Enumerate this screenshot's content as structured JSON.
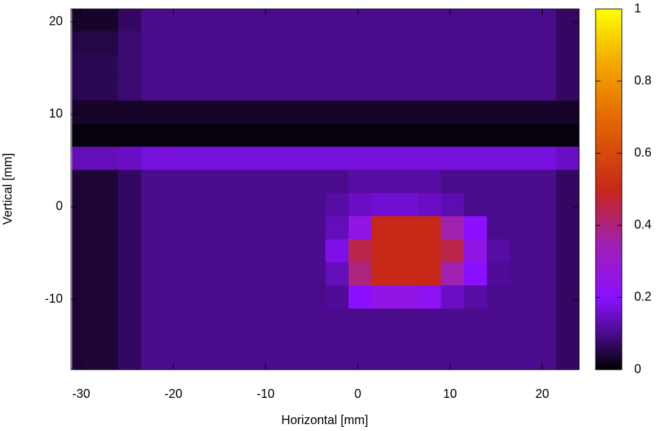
{
  "chart_data": {
    "type": "heatmap",
    "xlabel": "Horizontal [mm]",
    "ylabel": "Vertical [mm]",
    "xlim": [
      -31.1,
      24
    ],
    "ylim": [
      -17.6,
      21.4
    ],
    "xticks": [
      -30,
      -20,
      -10,
      0,
      10,
      20
    ],
    "yticks": [
      -10,
      0,
      10,
      20
    ],
    "clim": [
      0,
      1
    ],
    "cticks": [
      0,
      0.2,
      0.4,
      0.6,
      0.8,
      1
    ],
    "colormap": [
      {
        "value": 0,
        "color": "#000000"
      },
      {
        "value": 0.1,
        "color": "#4a0c8c"
      },
      {
        "value": 0.2,
        "color": "#8a10ff"
      },
      {
        "value": 0.35,
        "color": "#a020b0"
      },
      {
        "value": 0.5,
        "color": "#c82818"
      },
      {
        "value": 0.7,
        "color": "#e46a00"
      },
      {
        "value": 0.85,
        "color": "#f4a800"
      },
      {
        "value": 1,
        "color": "#ffff00"
      }
    ],
    "x": [
      -29.75,
      -27.25,
      -24.75,
      -22.25,
      -19.75,
      -17.25,
      -14.75,
      -12.25,
      -9.75,
      -7.25,
      -4.75,
      -2.25,
      0.25,
      2.75,
      5.25,
      7.75,
      10.25,
      12.75,
      15.25,
      17.75,
      20.25,
      22.75
    ],
    "y": [
      20.25,
      17.75,
      15.25,
      12.75,
      10.25,
      7.75,
      5.25,
      2.75,
      0.25,
      -2.25,
      -4.75,
      -7.25,
      -9.75,
      -12.25,
      -14.75,
      -17.25
    ],
    "z": [
      [
        0.03,
        0.03,
        0.07,
        0.1,
        0.1,
        0.1,
        0.1,
        0.1,
        0.1,
        0.1,
        0.1,
        0.1,
        0.1,
        0.1,
        0.1,
        0.1,
        0.1,
        0.1,
        0.1,
        0.1,
        0.1,
        0.07
      ],
      [
        0.05,
        0.05,
        0.08,
        0.1,
        0.1,
        0.1,
        0.1,
        0.1,
        0.1,
        0.1,
        0.1,
        0.1,
        0.1,
        0.1,
        0.1,
        0.1,
        0.1,
        0.1,
        0.1,
        0.1,
        0.1,
        0.07
      ],
      [
        0.06,
        0.06,
        0.08,
        0.1,
        0.1,
        0.1,
        0.1,
        0.1,
        0.1,
        0.1,
        0.1,
        0.1,
        0.1,
        0.1,
        0.1,
        0.1,
        0.1,
        0.1,
        0.1,
        0.1,
        0.1,
        0.07
      ],
      [
        0.06,
        0.06,
        0.08,
        0.1,
        0.1,
        0.1,
        0.1,
        0.1,
        0.1,
        0.1,
        0.1,
        0.1,
        0.1,
        0.1,
        0.1,
        0.1,
        0.1,
        0.1,
        0.1,
        0.1,
        0.1,
        0.07
      ],
      [
        0.03,
        0.03,
        0.03,
        0.03,
        0.03,
        0.03,
        0.03,
        0.03,
        0.03,
        0.03,
        0.03,
        0.03,
        0.03,
        0.03,
        0.03,
        0.03,
        0.03,
        0.03,
        0.03,
        0.03,
        0.03,
        0.03
      ],
      [
        0.01,
        0.01,
        0.01,
        0.01,
        0.01,
        0.01,
        0.01,
        0.01,
        0.01,
        0.01,
        0.01,
        0.01,
        0.01,
        0.01,
        0.01,
        0.01,
        0.01,
        0.01,
        0.01,
        0.01,
        0.01,
        0.01
      ],
      [
        0.14,
        0.14,
        0.15,
        0.17,
        0.17,
        0.17,
        0.17,
        0.17,
        0.17,
        0.17,
        0.17,
        0.17,
        0.17,
        0.17,
        0.17,
        0.17,
        0.17,
        0.17,
        0.17,
        0.17,
        0.17,
        0.15
      ],
      [
        0.04,
        0.04,
        0.07,
        0.1,
        0.1,
        0.1,
        0.1,
        0.1,
        0.1,
        0.1,
        0.1,
        0.1,
        0.12,
        0.12,
        0.12,
        0.12,
        0.1,
        0.1,
        0.1,
        0.1,
        0.1,
        0.07
      ],
      [
        0.04,
        0.04,
        0.07,
        0.1,
        0.1,
        0.1,
        0.1,
        0.1,
        0.1,
        0.1,
        0.1,
        0.12,
        0.15,
        0.16,
        0.16,
        0.15,
        0.13,
        0.1,
        0.1,
        0.1,
        0.1,
        0.07
      ],
      [
        0.04,
        0.04,
        0.07,
        0.1,
        0.1,
        0.1,
        0.1,
        0.1,
        0.1,
        0.1,
        0.1,
        0.14,
        0.25,
        0.5,
        0.5,
        0.5,
        0.35,
        0.2,
        0.1,
        0.1,
        0.1,
        0.07
      ],
      [
        0.04,
        0.04,
        0.07,
        0.1,
        0.1,
        0.1,
        0.1,
        0.1,
        0.1,
        0.1,
        0.1,
        0.18,
        0.45,
        0.5,
        0.5,
        0.5,
        0.45,
        0.25,
        0.12,
        0.1,
        0.1,
        0.07
      ],
      [
        0.04,
        0.04,
        0.07,
        0.1,
        0.1,
        0.1,
        0.1,
        0.1,
        0.1,
        0.1,
        0.1,
        0.14,
        0.4,
        0.5,
        0.5,
        0.5,
        0.35,
        0.2,
        0.11,
        0.1,
        0.1,
        0.07
      ],
      [
        0.04,
        0.04,
        0.07,
        0.1,
        0.1,
        0.1,
        0.1,
        0.1,
        0.1,
        0.1,
        0.1,
        0.11,
        0.2,
        0.25,
        0.25,
        0.22,
        0.15,
        0.12,
        0.1,
        0.1,
        0.1,
        0.07
      ],
      [
        0.04,
        0.04,
        0.07,
        0.1,
        0.1,
        0.1,
        0.1,
        0.1,
        0.1,
        0.1,
        0.1,
        0.1,
        0.1,
        0.1,
        0.1,
        0.1,
        0.1,
        0.1,
        0.1,
        0.1,
        0.1,
        0.07
      ],
      [
        0.04,
        0.04,
        0.07,
        0.1,
        0.1,
        0.1,
        0.1,
        0.1,
        0.1,
        0.1,
        0.1,
        0.1,
        0.1,
        0.1,
        0.1,
        0.1,
        0.1,
        0.1,
        0.1,
        0.1,
        0.1,
        0.07
      ],
      [
        0.04,
        0.04,
        0.07,
        0.1,
        0.1,
        0.1,
        0.1,
        0.1,
        0.1,
        0.1,
        0.1,
        0.1,
        0.1,
        0.1,
        0.1,
        0.1,
        0.1,
        0.1,
        0.1,
        0.1,
        0.1,
        0.07
      ]
    ]
  }
}
